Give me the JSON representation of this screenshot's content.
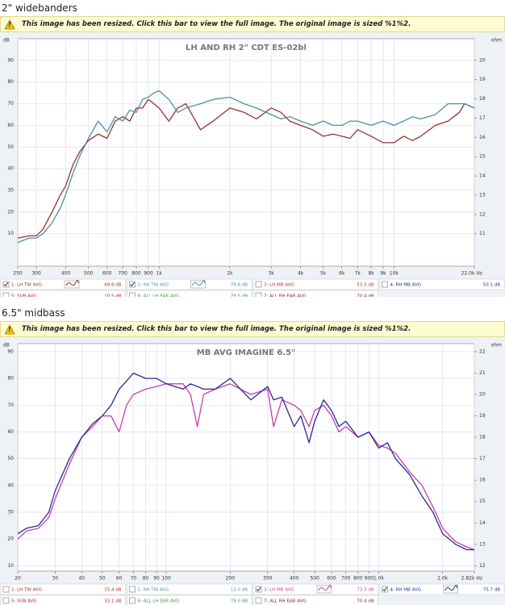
{
  "sections": [
    {
      "heading": "2\" widebanders",
      "notice": "This image has been resized. Click this bar to view the full image. The original image is sized %1%2."
    },
    {
      "heading": "6.5\" midbass",
      "notice": "This image has been resized. Click this bar to view the full image. The original image is sized %1%2."
    }
  ],
  "chart_data": [
    {
      "type": "line",
      "title": "LH AND RH 2\" CDT ES-02bl",
      "xscale": "log",
      "grid": true,
      "y_label": "dB",
      "y2_label": "ohm",
      "xlim": [
        250,
        22000
      ],
      "ylim": [
        -5,
        100
      ],
      "y2lim": [
        9.3125,
        21.125
      ],
      "xticks": [
        250,
        300,
        400,
        500,
        600,
        700,
        800,
        900,
        {
          "value": 1000,
          "label": "1k"
        },
        {
          "value": 2000,
          "label": "2k"
        },
        {
          "value": 3000,
          "label": "3k"
        },
        {
          "value": 4000,
          "label": "4k"
        },
        {
          "value": 5000,
          "label": "5k"
        },
        {
          "value": 6000,
          "label": "6k"
        },
        {
          "value": 7000,
          "label": "7k"
        },
        {
          "value": 8000,
          "label": "8k"
        },
        {
          "value": 9000,
          "label": "9k"
        },
        {
          "value": 10000,
          "label": "10k"
        },
        {
          "value": 22000,
          "label": "22.0k Hz"
        }
      ],
      "yticks": [
        10,
        20,
        30,
        40,
        50,
        60,
        70,
        80,
        90
      ],
      "y2ticks": [
        11,
        12,
        13,
        14,
        15,
        16,
        17,
        18,
        19,
        20
      ],
      "series": [
        {
          "name": "1: LH TW AVG",
          "color": "#9b2f2f",
          "checked": true,
          "reading": "68.6 dB",
          "x": [
            250,
            280,
            300,
            320,
            350,
            380,
            400,
            430,
            460,
            500,
            550,
            600,
            650,
            700,
            750,
            800,
            850,
            900,
            950,
            1000,
            1100,
            1200,
            1300,
            1500,
            1700,
            2000,
            2300,
            2600,
            3000,
            3300,
            3600,
            4000,
            4500,
            5000,
            5500,
            6000,
            6500,
            7000,
            8000,
            9000,
            10000,
            11000,
            12000,
            13000,
            15000,
            17000,
            19000,
            20000,
            22000
          ],
          "values": [
            8,
            9,
            9,
            12,
            20,
            28,
            32,
            42,
            48,
            53,
            56,
            54,
            62,
            64,
            62,
            68,
            68,
            72,
            70,
            68,
            62,
            68,
            70,
            58,
            62,
            68,
            66,
            63,
            68,
            66,
            62,
            60,
            58,
            55,
            56,
            55,
            54,
            58,
            55,
            52,
            52,
            55,
            53,
            55,
            60,
            62,
            66,
            70,
            68
          ]
        },
        {
          "name": "2: RH TW AVG",
          "color": "#4a90a8",
          "checked": true,
          "reading": "76.6 dB",
          "x": [
            250,
            280,
            300,
            320,
            350,
            380,
            400,
            430,
            460,
            500,
            550,
            600,
            650,
            700,
            750,
            800,
            850,
            900,
            950,
            1000,
            1100,
            1200,
            1300,
            1500,
            1700,
            2000,
            2300,
            2600,
            3000,
            3300,
            3600,
            4000,
            4500,
            5000,
            5500,
            6000,
            6500,
            7000,
            8000,
            9000,
            10000,
            11000,
            12000,
            13000,
            15000,
            17000,
            19000,
            20000,
            22000
          ],
          "values": [
            6,
            8,
            8,
            10,
            15,
            22,
            28,
            38,
            46,
            54,
            62,
            57,
            64,
            62,
            67,
            66,
            72,
            73,
            75,
            76,
            72,
            66,
            68,
            70,
            72,
            73,
            70,
            68,
            65,
            63,
            64,
            62,
            60,
            62,
            60,
            60,
            62,
            62,
            60,
            62,
            60,
            62,
            64,
            63,
            65,
            70,
            70,
            70,
            68
          ]
        },
        {
          "name": "3: LH MB AVG",
          "color": "#b03040",
          "checked": false,
          "reading": "53.3 dB",
          "x": [],
          "values": []
        },
        {
          "name": "4: RH MB AVG",
          "color": "#2a2a80",
          "checked": false,
          "reading": "50.1 dB",
          "x": [],
          "values": []
        },
        {
          "name": "5: SUB AVG",
          "color": "#b02020",
          "checked": false,
          "reading": "10.5 dB",
          "x": [],
          "values": []
        },
        {
          "name": "6: ALL LH EAR AVG",
          "color": "#3a9a3a",
          "checked": false,
          "reading": "79.5 dB",
          "x": [],
          "values": []
        },
        {
          "name": "7: ALL RH EAR AVG",
          "color": "#8a1a1a",
          "checked": false,
          "reading": "70.4 dB",
          "x": [],
          "values": []
        }
      ]
    },
    {
      "type": "line",
      "title": "MB AVG IMAGINE 6.5\"",
      "xscale": "log",
      "grid": true,
      "y_label": "dB",
      "y2_label": "ohm",
      "xlim": [
        20,
        2820
      ],
      "ylim": [
        8,
        93
      ],
      "y2lim": [
        11.75,
        22.375
      ],
      "xticks": [
        20,
        30,
        40,
        50,
        60,
        70,
        80,
        90,
        100,
        200,
        300,
        400,
        500,
        600,
        700,
        800,
        900,
        {
          "value": 1000,
          "label": "1.0k"
        },
        {
          "value": 2000,
          "label": "2.0k"
        },
        {
          "value": 2820,
          "label": "2.82k Hz"
        }
      ],
      "yticks": [
        10,
        20,
        30,
        40,
        50,
        60,
        70,
        80,
        90
      ],
      "y2ticks": [
        12,
        13,
        14,
        15,
        16,
        17,
        18,
        19,
        20,
        21,
        22
      ],
      "series": [
        {
          "name": "1: LH TW AVG",
          "color": "#c02020",
          "checked": false,
          "reading": "15.4 dB",
          "x": [],
          "values": []
        },
        {
          "name": "2: RH TW AVG",
          "color": "#4a90a8",
          "checked": false,
          "reading": "13.0 dB",
          "x": [],
          "values": []
        },
        {
          "name": "3: LH MB AVG",
          "color": "#c040b0",
          "checked": true,
          "reading": "73.3 dB",
          "x": [
            20,
            22,
            25,
            28,
            30,
            35,
            40,
            45,
            50,
            55,
            60,
            65,
            70,
            80,
            90,
            100,
            120,
            130,
            140,
            150,
            170,
            200,
            250,
            300,
            320,
            350,
            400,
            430,
            470,
            500,
            550,
            600,
            650,
            700,
            800,
            900,
            1000,
            1100,
            1200,
            1400,
            1600,
            1800,
            2000,
            2300,
            2600,
            2820
          ],
          "values": [
            20,
            23,
            24,
            28,
            35,
            48,
            58,
            62,
            66,
            66,
            60,
            70,
            74,
            76,
            77,
            78,
            78,
            74,
            62,
            74,
            76,
            78,
            74,
            76,
            62,
            72,
            70,
            68,
            62,
            68,
            70,
            66,
            60,
            62,
            58,
            60,
            55,
            54,
            52,
            45,
            40,
            32,
            24,
            19,
            17,
            16
          ]
        },
        {
          "name": "4: RH MB AVG",
          "color": "#2a2a90",
          "checked": true,
          "reading": "75.7 dB",
          "x": [
            20,
            22,
            25,
            28,
            30,
            35,
            40,
            45,
            50,
            55,
            60,
            65,
            70,
            80,
            90,
            100,
            120,
            130,
            140,
            150,
            170,
            200,
            250,
            300,
            320,
            350,
            400,
            430,
            470,
            500,
            550,
            600,
            650,
            700,
            800,
            900,
            1000,
            1100,
            1200,
            1400,
            1600,
            1800,
            2000,
            2300,
            2600,
            2820
          ],
          "values": [
            22,
            24,
            25,
            30,
            38,
            50,
            58,
            63,
            66,
            70,
            76,
            79,
            82,
            80,
            80,
            78,
            76,
            78,
            77,
            76,
            76,
            80,
            72,
            77,
            72,
            73,
            62,
            66,
            56,
            64,
            72,
            68,
            62,
            64,
            58,
            60,
            54,
            56,
            50,
            44,
            36,
            30,
            22,
            18,
            16,
            16
          ]
        },
        {
          "name": "5: SUB AVG",
          "color": "#c02020",
          "checked": false,
          "reading": "33.1 dB",
          "x": [],
          "values": []
        },
        {
          "name": "6: ALL LH EAR AVG",
          "color": "#3a9a3a",
          "checked": false,
          "reading": "79.0 dB",
          "x": [],
          "values": []
        },
        {
          "name": "7: ALL RH EAR AVG",
          "color": "#8a1a1a",
          "checked": false,
          "reading": "70.4 dB",
          "x": [],
          "values": []
        }
      ]
    }
  ]
}
